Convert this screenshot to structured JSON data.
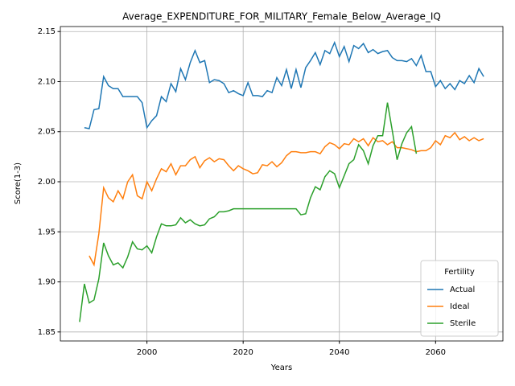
{
  "chart_data": {
    "type": "line",
    "title": "Average_EXPENDITURE_FOR_MILITARY_Female_Below_Average_IQ",
    "xlabel": "Years",
    "ylabel": "Score(1-3)",
    "legend_title": "Fertility",
    "legend": "lower right",
    "grid": true,
    "xlim": [
      1982,
      2074
    ],
    "ylim": [
      1.841,
      2.155
    ],
    "xticks": [
      2000,
      2020,
      2040,
      2060
    ],
    "yticks": [
      1.85,
      {
        "value": 1.9,
        "label": "1.90"
      },
      1.95,
      {
        "value": 2.0,
        "label": "2.00"
      },
      2.05,
      {
        "value": 2.1,
        "label": "2.10"
      },
      2.15
    ],
    "x": [
      1986,
      1987,
      1988,
      1989,
      1990,
      1991,
      1992,
      1993,
      1994,
      1995,
      1996,
      1997,
      1998,
      1999,
      2000,
      2001,
      2002,
      2003,
      2004,
      2005,
      2006,
      2007,
      2008,
      2009,
      2010,
      2011,
      2012,
      2013,
      2014,
      2015,
      2016,
      2017,
      2018,
      2019,
      2020,
      2021,
      2022,
      2023,
      2024,
      2025,
      2026,
      2027,
      2028,
      2029,
      2030,
      2031,
      2032,
      2033,
      2034,
      2035,
      2036,
      2037,
      2038,
      2039,
      2040,
      2041,
      2042,
      2043,
      2044,
      2045,
      2046,
      2047,
      2048,
      2049,
      2050,
      2051,
      2052,
      2053,
      2054,
      2055,
      2056,
      2057,
      2058,
      2059,
      2060,
      2061,
      2062,
      2063,
      2064,
      2065,
      2066,
      2067,
      2068,
      2069,
      2070
    ],
    "series": [
      {
        "name": "Actual",
        "color": "#1f77b4",
        "values": [
          null,
          2.054,
          2.053,
          2.072,
          2.073,
          2.105,
          2.096,
          2.093,
          2.093,
          2.085,
          2.085,
          2.085,
          2.085,
          2.079,
          2.054,
          2.061,
          2.066,
          2.085,
          2.08,
          2.098,
          2.09,
          2.113,
          2.102,
          2.119,
          2.131,
          2.119,
          2.121,
          2.099,
          2.102,
          2.101,
          2.098,
          2.089,
          2.091,
          2.088,
          2.086,
          2.099,
          2.086,
          2.086,
          2.085,
          2.091,
          2.089,
          2.104,
          2.096,
          2.112,
          2.093,
          2.112,
          2.094,
          2.114,
          2.121,
          2.129,
          2.117,
          2.131,
          2.128,
          2.139,
          2.125,
          2.135,
          2.12,
          2.136,
          2.133,
          2.138,
          2.129,
          2.132,
          2.128,
          2.13,
          2.131,
          2.124,
          2.121,
          2.121,
          2.12,
          2.123,
          2.116,
          2.126,
          2.11,
          2.11,
          2.095,
          2.101,
          2.093,
          2.098,
          2.092,
          2.101,
          2.098,
          2.106,
          2.099,
          2.113,
          2.105
        ]
      },
      {
        "name": "Ideal",
        "color": "#ff7f0e",
        "values": [
          null,
          null,
          1.926,
          1.917,
          1.948,
          1.994,
          1.984,
          1.98,
          1.991,
          1.983,
          2.0,
          2.007,
          1.986,
          1.983,
          2.0,
          1.991,
          2.003,
          2.013,
          2.01,
          2.018,
          2.007,
          2.016,
          2.016,
          2.022,
          2.025,
          2.014,
          2.021,
          2.024,
          2.02,
          2.023,
          2.022,
          2.016,
          2.011,
          2.016,
          2.013,
          2.011,
          2.008,
          2.009,
          2.017,
          2.016,
          2.02,
          2.015,
          2.019,
          2.026,
          2.03,
          2.03,
          2.029,
          2.029,
          2.03,
          2.03,
          2.028,
          2.035,
          2.039,
          2.037,
          2.033,
          2.038,
          2.037,
          2.043,
          2.04,
          2.043,
          2.036,
          2.044,
          2.04,
          2.041,
          2.037,
          2.04,
          2.034,
          2.034,
          2.033,
          2.032,
          2.03,
          2.031,
          2.031,
          2.034,
          2.041,
          2.037,
          2.046,
          2.044,
          2.049,
          2.042,
          2.045,
          2.041,
          2.044,
          2.041,
          2.043
        ]
      },
      {
        "name": "Sterile",
        "color": "#2ca02c",
        "values": [
          1.86,
          1.898,
          1.879,
          1.882,
          1.903,
          1.939,
          1.926,
          1.917,
          1.919,
          1.914,
          1.925,
          1.94,
          1.933,
          1.932,
          1.936,
          1.929,
          1.945,
          1.958,
          1.956,
          1.956,
          1.957,
          1.964,
          1.959,
          1.962,
          1.958,
          1.956,
          1.957,
          1.963,
          1.965,
          1.97,
          1.97,
          1.971,
          1.973,
          1.973,
          1.973,
          1.973,
          1.973,
          1.973,
          1.973,
          1.973,
          1.973,
          1.973,
          1.973,
          1.973,
          1.973,
          1.973,
          1.967,
          1.968,
          1.984,
          1.995,
          1.992,
          2.005,
          2.011,
          2.008,
          1.994,
          2.006,
          2.018,
          2.022,
          2.037,
          2.031,
          2.018,
          2.036,
          2.046,
          2.046,
          2.079,
          2.051,
          2.022,
          2.038,
          2.049,
          2.055,
          2.028,
          null,
          null,
          null,
          null,
          null,
          null,
          null,
          null,
          null,
          null,
          null,
          null,
          null,
          null
        ]
      }
    ]
  }
}
